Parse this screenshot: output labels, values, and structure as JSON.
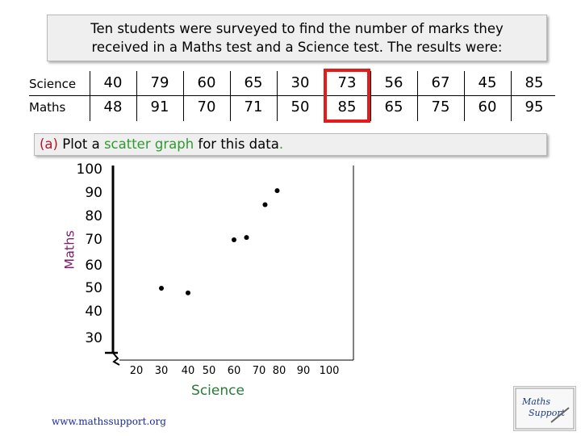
{
  "intro": {
    "line1": "Ten students were surveyed to find the number of marks they",
    "line2": "received in a Maths test and a Science test. The results were:"
  },
  "table": {
    "science_label": "Science",
    "maths_label": "Maths",
    "science": [
      "40",
      "79",
      "60",
      "65",
      "30",
      "73",
      "56",
      "67",
      "45",
      "85"
    ],
    "maths": [
      "48",
      "91",
      "70",
      "71",
      "50",
      "85",
      "65",
      "75",
      "60",
      "95"
    ]
  },
  "question": {
    "part": "(a)",
    "text1": " Plot a ",
    "highlight": "scatter graph",
    "text2": " for this data",
    "period": "."
  },
  "source": "www.mathssupport.org",
  "logo": {
    "text1": "Maths",
    "text2": "Support"
  },
  "colors": {
    "highlight_box": "#e31b1b",
    "question_part": "#b0182c",
    "term": "#2f9a2f"
  },
  "chart_data": {
    "type": "scatter",
    "xlabel": "Science",
    "ylabel": "Maths",
    "x_ticks": [
      "20",
      "30",
      "40",
      "50",
      "60",
      "70",
      "80",
      "90",
      "100"
    ],
    "y_ticks": [
      "100",
      "90",
      "80",
      "70",
      "60",
      "50",
      "40",
      "30"
    ],
    "points": [
      {
        "x": 30,
        "y": 50
      },
      {
        "x": 40,
        "y": 48
      },
      {
        "x": 60,
        "y": 70
      },
      {
        "x": 65,
        "y": 71
      },
      {
        "x": 73,
        "y": 85
      },
      {
        "x": 79,
        "y": 91
      }
    ],
    "axis_break": true,
    "grid": false
  }
}
